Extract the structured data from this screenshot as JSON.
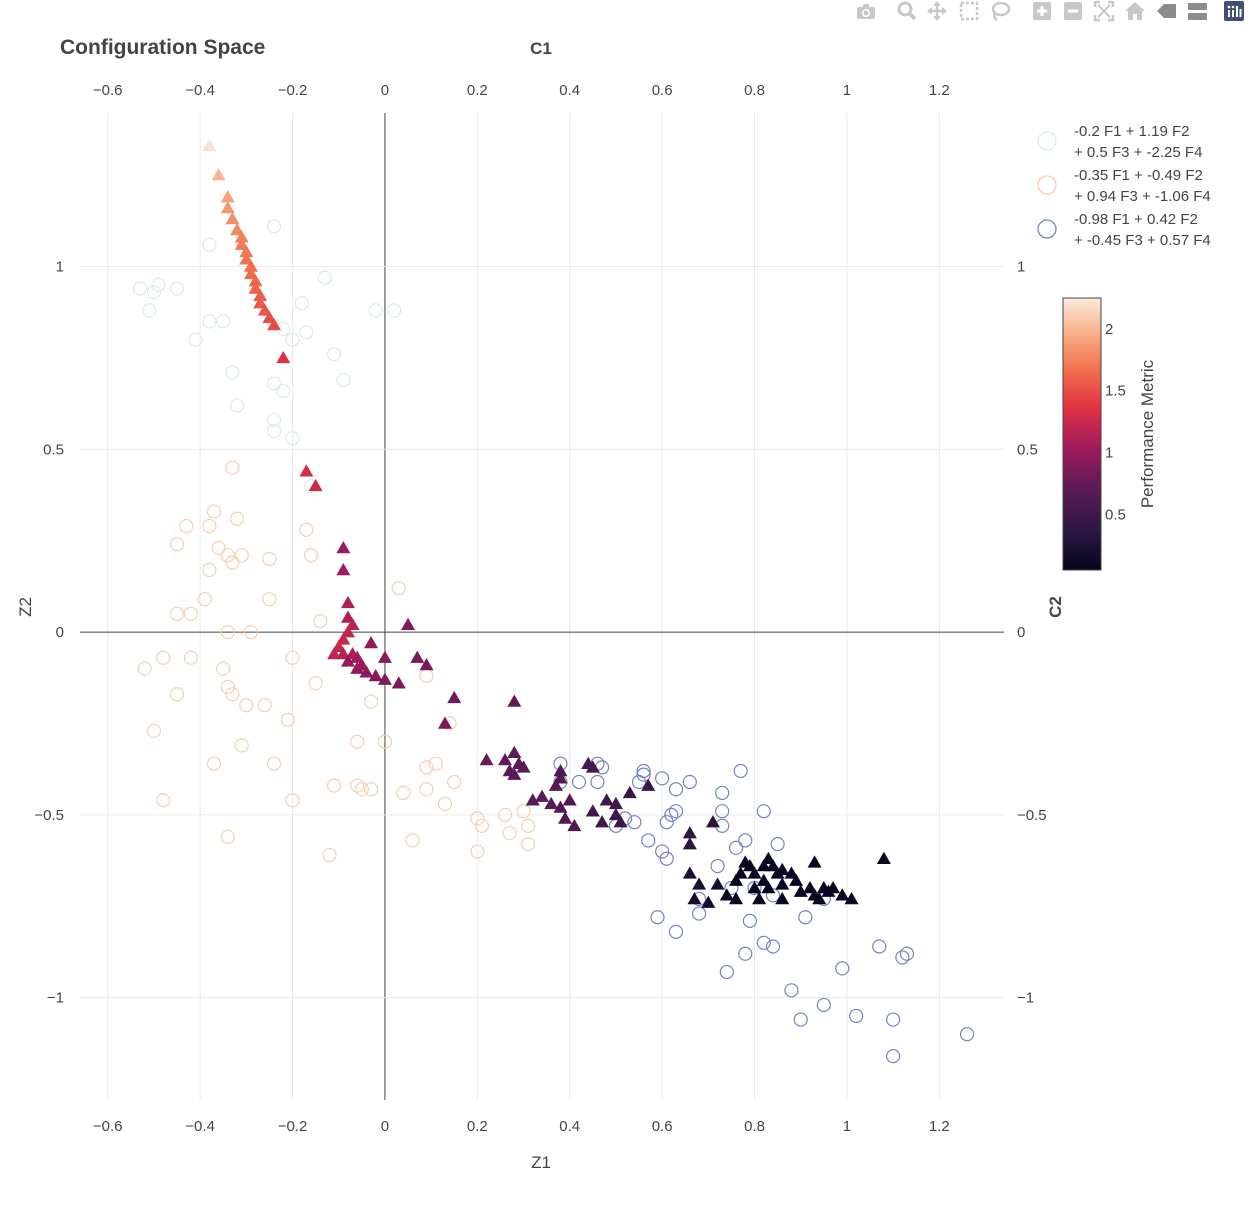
{
  "title": "Configuration Space",
  "modebar": {
    "icons": [
      "camera-icon",
      "zoom-icon",
      "pan-icon",
      "box-select-icon",
      "lasso-icon",
      "zoom-in-icon",
      "zoom-out-icon",
      "autoscale-icon",
      "reset-axes-icon",
      "spike-lines-icon",
      "compare-hover-icon",
      "plotly-logo-icon"
    ]
  },
  "colors": {
    "grid": "#ebebeb",
    "zeroline": "#444444",
    "text": "#444444",
    "group_a": "#d9ece8",
    "group_b": "#f7cdb4",
    "group_c": "#7483c4"
  },
  "chart_data": {
    "type": "scatter",
    "title": "Configuration Space",
    "xlabel": "Z1",
    "ylabel": "Z2",
    "x2label": "C1",
    "y2label": "C2",
    "xlim": [
      -0.66,
      1.34
    ],
    "ylim": [
      -1.28,
      1.42
    ],
    "xticks": [
      -0.6,
      -0.4,
      -0.2,
      0,
      0.2,
      0.4,
      0.6,
      0.8,
      1,
      1.2
    ],
    "xtick_labels": [
      "−0.6",
      "−0.4",
      "−0.2",
      "0",
      "0.2",
      "0.4",
      "0.6",
      "0.8",
      "1",
      "1.2"
    ],
    "yticks": [
      -1,
      -0.5,
      0,
      0.5,
      1
    ],
    "ytick_labels": [
      "−1",
      "−0.5",
      "0",
      "0.5",
      "1"
    ],
    "grid": true,
    "legend_position": "top-right",
    "legend": [
      {
        "line1": "-0.2 F1 + 1.19 F2",
        "line2": "+ 0.5 F3 + -2.25 F4",
        "color": "#d9ece8"
      },
      {
        "line1": "-0.35 F1 + -0.49 F2",
        "line2": "+ 0.94 F3 + -1.06 F4",
        "color": "#f7cdb4"
      },
      {
        "line1": "-0.98 F1 + 0.42 F2",
        "line2": "+ -0.45 F3 + 0.57 F4",
        "color": "#7483c4"
      }
    ],
    "colorbar": {
      "title": "Performance Metric",
      "range": [
        0.05,
        2.25
      ],
      "ticks": [
        0.5,
        1,
        1.5,
        2
      ],
      "tick_labels": [
        "0.5",
        "1",
        "1.5",
        "2"
      ]
    },
    "circle_series": [
      {
        "name": "-0.2 F1 + 1.19 F2 + 0.5 F3 + -2.25 F4",
        "points": [
          [
            -0.53,
            0.94
          ],
          [
            -0.5,
            0.93
          ],
          [
            -0.49,
            0.95
          ],
          [
            -0.45,
            0.94
          ],
          [
            -0.51,
            0.88
          ],
          [
            -0.38,
            1.06
          ],
          [
            -0.24,
            1.11
          ],
          [
            -0.13,
            0.97
          ],
          [
            -0.38,
            0.85
          ],
          [
            -0.35,
            0.85
          ],
          [
            -0.41,
            0.8
          ],
          [
            -0.18,
            0.9
          ],
          [
            -0.17,
            0.82
          ],
          [
            -0.11,
            0.76
          ],
          [
            -0.09,
            0.69
          ],
          [
            -0.22,
            0.83
          ],
          [
            -0.2,
            0.8
          ],
          [
            -0.24,
            0.68
          ],
          [
            -0.22,
            0.66
          ],
          [
            -0.33,
            0.71
          ],
          [
            -0.32,
            0.62
          ],
          [
            -0.24,
            0.58
          ],
          [
            -0.24,
            0.55
          ],
          [
            -0.2,
            0.53
          ],
          [
            0.02,
            0.88
          ],
          [
            -0.02,
            0.88
          ],
          [
            -0.16,
            0.4
          ]
        ]
      },
      {
        "name": "-0.35 F1 + -0.49 F2 + 0.94 F3 + -1.06 F4",
        "points": [
          [
            -0.33,
            0.45
          ],
          [
            -0.37,
            0.33
          ],
          [
            -0.32,
            0.31
          ],
          [
            -0.38,
            0.29
          ],
          [
            -0.43,
            0.29
          ],
          [
            -0.45,
            0.24
          ],
          [
            -0.36,
            0.23
          ],
          [
            -0.34,
            0.21
          ],
          [
            -0.31,
            0.21
          ],
          [
            -0.38,
            0.17
          ],
          [
            -0.33,
            0.19
          ],
          [
            -0.25,
            0.2
          ],
          [
            -0.17,
            0.28
          ],
          [
            -0.16,
            0.21
          ],
          [
            -0.25,
            0.09
          ],
          [
            -0.39,
            0.09
          ],
          [
            -0.45,
            0.05
          ],
          [
            -0.42,
            0.05
          ],
          [
            -0.34,
            0.0
          ],
          [
            -0.29,
            0.0
          ],
          [
            -0.14,
            0.03
          ],
          [
            -0.48,
            -0.07
          ],
          [
            -0.42,
            -0.07
          ],
          [
            -0.52,
            -0.1
          ],
          [
            -0.35,
            -0.1
          ],
          [
            -0.2,
            -0.07
          ],
          [
            -0.15,
            -0.14
          ],
          [
            -0.34,
            -0.15
          ],
          [
            -0.45,
            -0.17
          ],
          [
            -0.33,
            -0.17
          ],
          [
            -0.3,
            -0.2
          ],
          [
            -0.26,
            -0.2
          ],
          [
            -0.21,
            -0.24
          ],
          [
            -0.5,
            -0.27
          ],
          [
            -0.37,
            -0.36
          ],
          [
            -0.24,
            -0.36
          ],
          [
            -0.31,
            -0.31
          ],
          [
            -0.48,
            -0.46
          ],
          [
            -0.2,
            -0.46
          ],
          [
            -0.34,
            -0.56
          ],
          [
            -0.11,
            -0.42
          ],
          [
            -0.12,
            -0.61
          ],
          [
            -0.06,
            -0.3
          ],
          [
            -0.06,
            -0.42
          ],
          [
            -0.05,
            -0.43
          ],
          [
            -0.03,
            -0.43
          ],
          [
            0.04,
            -0.44
          ],
          [
            0.09,
            -0.43
          ],
          [
            0.09,
            -0.37
          ],
          [
            0.11,
            -0.36
          ],
          [
            0.13,
            -0.47
          ],
          [
            0.15,
            -0.41
          ],
          [
            0.2,
            -0.51
          ],
          [
            0.21,
            -0.53
          ],
          [
            0.26,
            -0.5
          ],
          [
            0.3,
            -0.49
          ],
          [
            0.27,
            -0.55
          ],
          [
            0.31,
            -0.53
          ],
          [
            0.31,
            -0.58
          ],
          [
            0.2,
            -0.6
          ],
          [
            0.06,
            -0.57
          ],
          [
            0.0,
            -0.3
          ],
          [
            -0.03,
            -0.19
          ],
          [
            0.03,
            0.12
          ],
          [
            0.09,
            -0.12
          ],
          [
            0.14,
            -0.25
          ]
        ]
      },
      {
        "name": "-0.98 F1 + 0.42 F2 + -0.45 F3 + 0.57 F4",
        "points": [
          [
            0.38,
            -0.36
          ],
          [
            0.42,
            -0.41
          ],
          [
            0.38,
            -0.41
          ],
          [
            0.46,
            -0.36
          ],
          [
            0.46,
            -0.41
          ],
          [
            0.47,
            -0.37
          ],
          [
            0.55,
            -0.41
          ],
          [
            0.56,
            -0.38
          ],
          [
            0.56,
            -0.39
          ],
          [
            0.6,
            -0.4
          ],
          [
            0.63,
            -0.43
          ],
          [
            0.66,
            -0.41
          ],
          [
            0.63,
            -0.49
          ],
          [
            0.62,
            -0.5
          ],
          [
            0.61,
            -0.52
          ],
          [
            0.54,
            -0.52
          ],
          [
            0.52,
            -0.51
          ],
          [
            0.5,
            -0.53
          ],
          [
            0.57,
            -0.57
          ],
          [
            0.6,
            -0.6
          ],
          [
            0.61,
            -0.62
          ],
          [
            0.59,
            -0.78
          ],
          [
            0.63,
            -0.82
          ],
          [
            0.73,
            -0.44
          ],
          [
            0.73,
            -0.49
          ],
          [
            0.73,
            -0.53
          ],
          [
            0.77,
            -0.38
          ],
          [
            0.82,
            -0.49
          ],
          [
            0.76,
            -0.59
          ],
          [
            0.78,
            -0.57
          ],
          [
            0.85,
            -0.58
          ],
          [
            0.72,
            -0.64
          ],
          [
            0.68,
            -0.73
          ],
          [
            0.68,
            -0.77
          ],
          [
            0.75,
            -0.7
          ],
          [
            0.79,
            -0.79
          ],
          [
            0.82,
            -0.85
          ],
          [
            0.84,
            -0.86
          ],
          [
            0.78,
            -0.88
          ],
          [
            0.74,
            -0.93
          ],
          [
            0.88,
            -0.98
          ],
          [
            0.9,
            -1.06
          ],
          [
            0.95,
            -1.02
          ],
          [
            1.02,
            -1.05
          ],
          [
            0.91,
            -0.78
          ],
          [
            0.99,
            -0.92
          ],
          [
            0.95,
            -0.73
          ],
          [
            1.07,
            -0.86
          ],
          [
            1.13,
            -0.88
          ],
          [
            1.12,
            -0.89
          ],
          [
            1.1,
            -1.06
          ],
          [
            1.1,
            -1.16
          ],
          [
            1.26,
            -1.1
          ],
          [
            0.84,
            -0.72
          ],
          [
            0.8,
            -0.7
          ]
        ]
      }
    ],
    "triangles": [
      [
        -0.38,
        1.33
      ],
      [
        -0.36,
        1.25
      ],
      [
        -0.34,
        1.19
      ],
      [
        -0.34,
        1.16
      ],
      [
        -0.33,
        1.13
      ],
      [
        -0.32,
        1.1
      ],
      [
        -0.31,
        1.08
      ],
      [
        -0.31,
        1.06
      ],
      [
        -0.3,
        1.04
      ],
      [
        -0.3,
        1.02
      ],
      [
        -0.29,
        1.0
      ],
      [
        -0.29,
        0.98
      ],
      [
        -0.28,
        0.96
      ],
      [
        -0.28,
        0.94
      ],
      [
        -0.27,
        0.92
      ],
      [
        -0.27,
        0.9
      ],
      [
        -0.26,
        0.88
      ],
      [
        -0.25,
        0.86
      ],
      [
        -0.24,
        0.84
      ],
      [
        -0.22,
        0.75
      ],
      [
        -0.17,
        0.44
      ],
      [
        -0.15,
        0.4
      ],
      [
        -0.09,
        0.23
      ],
      [
        -0.09,
        0.17
      ],
      [
        -0.08,
        0.08
      ],
      [
        -0.08,
        0.04
      ],
      [
        -0.07,
        0.02
      ],
      [
        -0.08,
        0.0
      ],
      [
        -0.09,
        -0.02
      ],
      [
        -0.1,
        -0.04
      ],
      [
        -0.11,
        -0.06
      ],
      [
        -0.09,
        -0.06
      ],
      [
        -0.07,
        -0.06
      ],
      [
        -0.06,
        -0.07
      ],
      [
        -0.08,
        -0.08
      ],
      [
        -0.06,
        -0.1
      ],
      [
        -0.04,
        -0.11
      ],
      [
        -0.02,
        -0.12
      ],
      [
        0.0,
        -0.13
      ],
      [
        -0.05,
        -0.09
      ],
      [
        -0.03,
        -0.03
      ],
      [
        0.0,
        -0.07
      ],
      [
        0.05,
        0.02
      ],
      [
        0.07,
        -0.07
      ],
      [
        0.09,
        -0.09
      ],
      [
        0.03,
        -0.14
      ],
      [
        0.15,
        -0.18
      ],
      [
        0.13,
        -0.25
      ],
      [
        0.28,
        -0.19
      ],
      [
        0.28,
        -0.33
      ],
      [
        0.22,
        -0.35
      ],
      [
        0.26,
        -0.35
      ],
      [
        0.29,
        -0.36
      ],
      [
        0.27,
        -0.38
      ],
      [
        0.3,
        -0.37
      ],
      [
        0.28,
        -0.39
      ],
      [
        0.34,
        -0.45
      ],
      [
        0.32,
        -0.46
      ],
      [
        0.36,
        -0.47
      ],
      [
        0.37,
        -0.42
      ],
      [
        0.38,
        -0.4
      ],
      [
        0.38,
        -0.38
      ],
      [
        0.4,
        -0.46
      ],
      [
        0.38,
        -0.48
      ],
      [
        0.39,
        -0.51
      ],
      [
        0.41,
        -0.53
      ],
      [
        0.44,
        -0.36
      ],
      [
        0.45,
        -0.37
      ],
      [
        0.48,
        -0.46
      ],
      [
        0.5,
        -0.47
      ],
      [
        0.5,
        -0.5
      ],
      [
        0.51,
        -0.52
      ],
      [
        0.45,
        -0.49
      ],
      [
        0.47,
        -0.52
      ],
      [
        0.53,
        -0.44
      ],
      [
        0.57,
        -0.42
      ],
      [
        0.66,
        -0.55
      ],
      [
        0.66,
        -0.58
      ],
      [
        0.71,
        -0.52
      ],
      [
        0.66,
        -0.66
      ],
      [
        0.68,
        -0.69
      ],
      [
        0.72,
        -0.69
      ],
      [
        0.67,
        -0.73
      ],
      [
        0.7,
        -0.74
      ],
      [
        0.78,
        -0.63
      ],
      [
        0.77,
        -0.66
      ],
      [
        0.76,
        -0.68
      ],
      [
        0.79,
        -0.64
      ],
      [
        0.8,
        -0.66
      ],
      [
        0.82,
        -0.64
      ],
      [
        0.83,
        -0.62
      ],
      [
        0.84,
        -0.64
      ],
      [
        0.85,
        -0.66
      ],
      [
        0.86,
        -0.65
      ],
      [
        0.82,
        -0.68
      ],
      [
        0.8,
        -0.7
      ],
      [
        0.83,
        -0.7
      ],
      [
        0.86,
        -0.69
      ],
      [
        0.88,
        -0.66
      ],
      [
        0.89,
        -0.68
      ],
      [
        0.9,
        -0.71
      ],
      [
        0.92,
        -0.7
      ],
      [
        0.93,
        -0.72
      ],
      [
        0.95,
        -0.7
      ],
      [
        0.96,
        -0.71
      ],
      [
        0.97,
        -0.7
      ],
      [
        0.99,
        -0.72
      ],
      [
        1.01,
        -0.73
      ],
      [
        1.08,
        -0.62
      ],
      [
        0.81,
        -0.73
      ],
      [
        0.76,
        -0.73
      ],
      [
        0.74,
        -0.72
      ],
      [
        0.86,
        -0.73
      ],
      [
        0.94,
        -0.73
      ],
      [
        0.93,
        -0.63
      ]
    ],
    "triangle_values": [
      2.2,
      2.0,
      1.9,
      1.85,
      1.8,
      1.78,
      1.75,
      1.72,
      1.7,
      1.68,
      1.66,
      1.64,
      1.62,
      1.6,
      1.58,
      1.56,
      1.54,
      1.5,
      1.48,
      1.35,
      1.3,
      1.25,
      1.02,
      1.05,
      1.1,
      1.12,
      1.15,
      1.2,
      1.22,
      1.25,
      1.2,
      1.15,
      1.1,
      1.05,
      1.0,
      0.98,
      0.95,
      0.92,
      0.9,
      1.0,
      0.95,
      0.92,
      0.88,
      0.85,
      0.85,
      0.88,
      0.8,
      0.85,
      0.75,
      0.72,
      0.78,
      0.75,
      0.72,
      0.7,
      0.7,
      0.7,
      0.7,
      0.68,
      0.68,
      0.66,
      0.64,
      0.64,
      0.62,
      0.62,
      0.62,
      0.62,
      0.55,
      0.55,
      0.5,
      0.48,
      0.48,
      0.46,
      0.5,
      0.48,
      0.45,
      0.45,
      0.35,
      0.35,
      0.32,
      0.25,
      0.22,
      0.2,
      0.2,
      0.18,
      0.12,
      0.1,
      0.1,
      0.1,
      0.1,
      0.1,
      0.09,
      0.09,
      0.09,
      0.09,
      0.09,
      0.09,
      0.09,
      0.09,
      0.1,
      0.09,
      0.09,
      0.09,
      0.09,
      0.09,
      0.09,
      0.09,
      0.09,
      0.09,
      0.1,
      0.08,
      0.08,
      0.08,
      0.08,
      0.08,
      0.08
    ]
  }
}
